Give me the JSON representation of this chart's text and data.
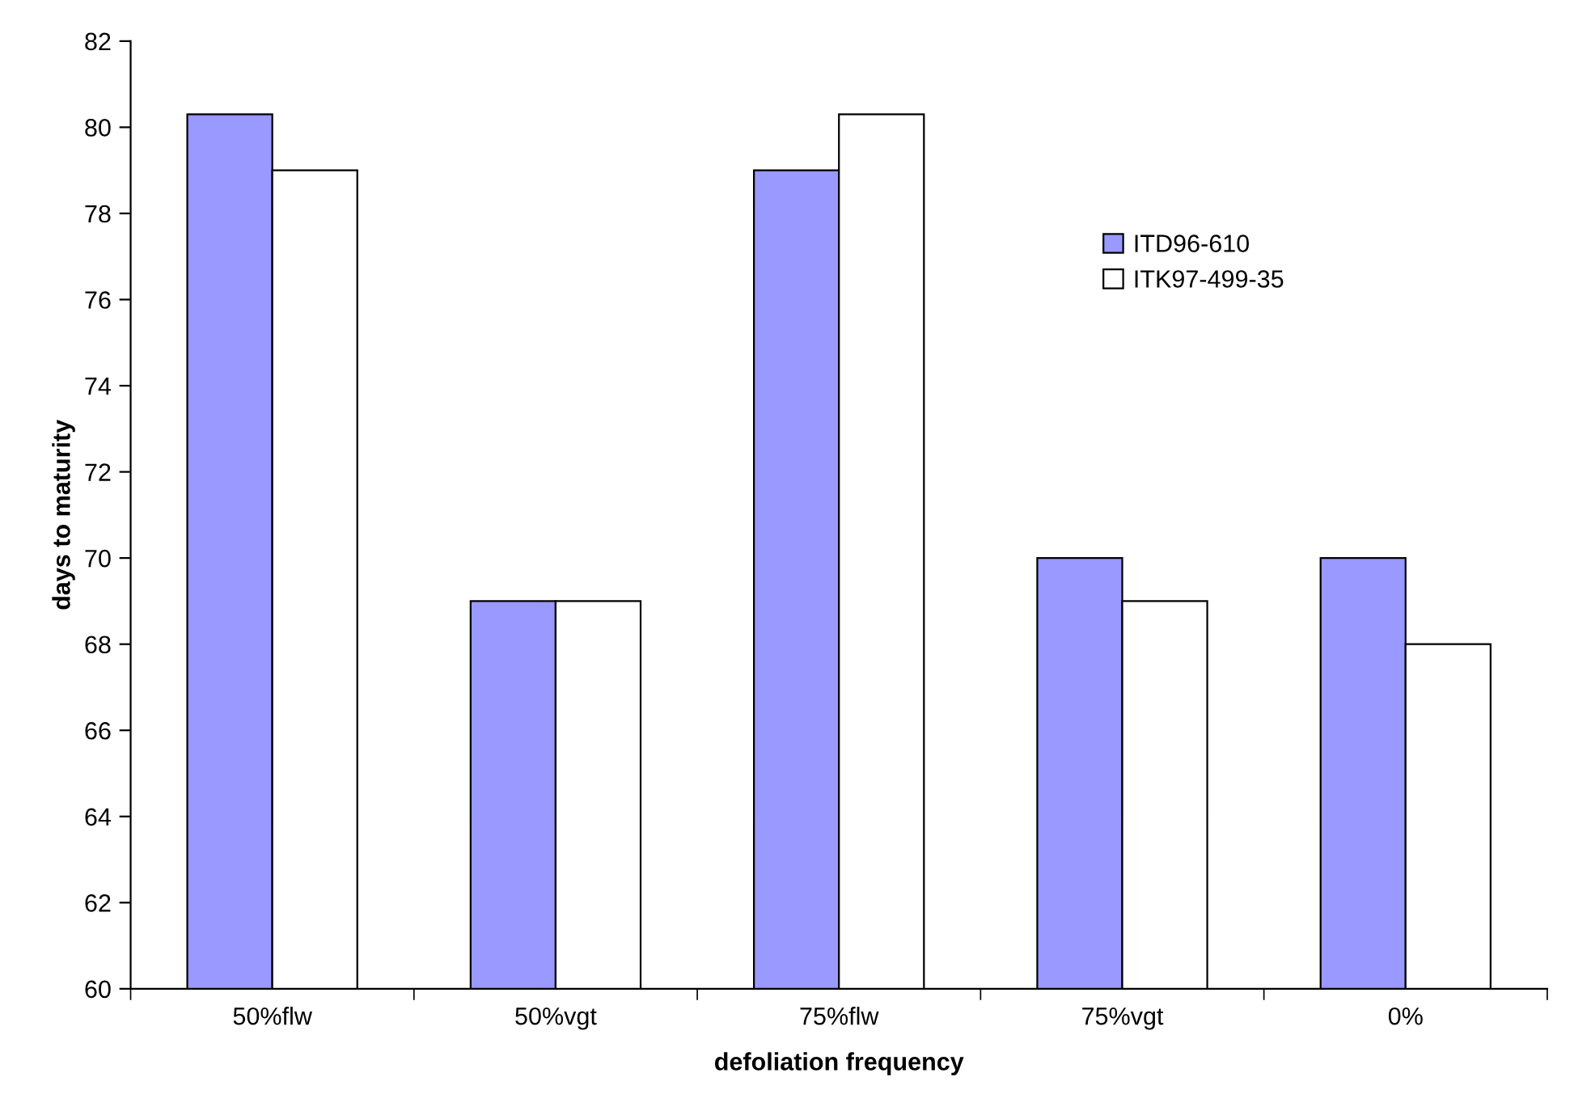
{
  "chart_data": {
    "type": "bar",
    "xlabel": "defoliation frequency",
    "ylabel": "days to maturity",
    "categories": [
      "50%flw",
      "50%vgt",
      "75%flw",
      "75%vgt",
      "0%"
    ],
    "series": [
      {
        "name": "ITD96-610",
        "color": "#9999ff",
        "values": [
          80.3,
          69,
          79,
          70,
          70
        ]
      },
      {
        "name": "ITK97-499-35",
        "color": "#ffffff",
        "values": [
          79,
          69,
          80.3,
          69,
          68
        ]
      }
    ],
    "ylim": [
      60,
      82
    ],
    "yticks": [
      60,
      62,
      64,
      66,
      68,
      70,
      72,
      74,
      76,
      78,
      80,
      82
    ],
    "grid": false,
    "legend": "top right"
  }
}
